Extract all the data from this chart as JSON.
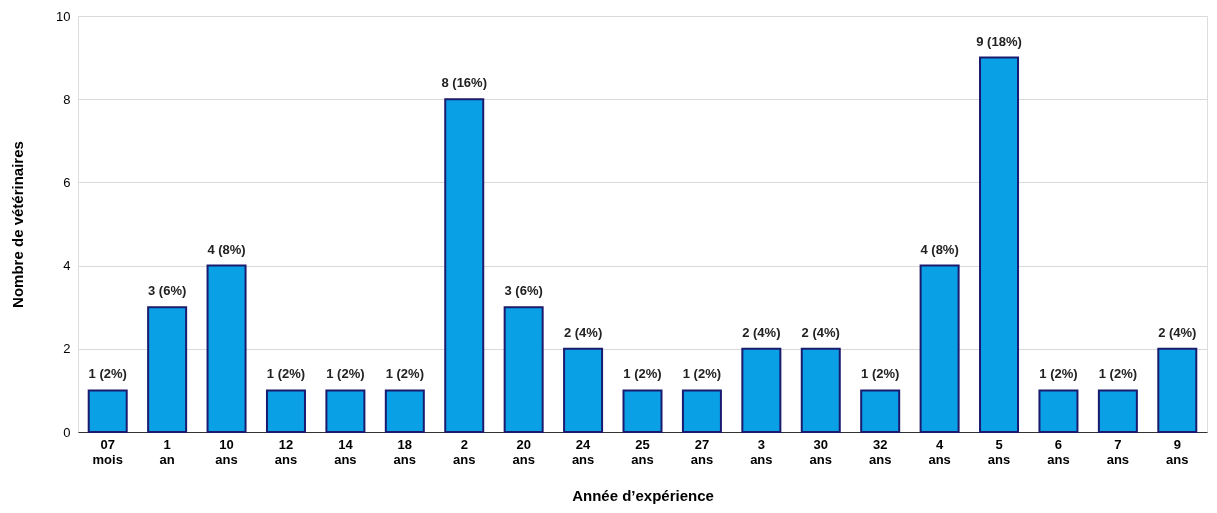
{
  "chart_data": {
    "type": "bar",
    "xlabel": "Année d’expérience",
    "ylabel": "Nombre de vétérinaires",
    "categories": [
      "07 mois",
      "1 an",
      "10 ans",
      "12 ans",
      "14 ans",
      "18 ans",
      "2 ans",
      "20 ans",
      "24 ans",
      "25 ans",
      "27 ans",
      "3 ans",
      "30 ans",
      "32 ans",
      "4 ans",
      "5 ans",
      "6 ans",
      "7 ans",
      "9 ans"
    ],
    "values": [
      1,
      3,
      4,
      1,
      1,
      1,
      8,
      3,
      2,
      1,
      1,
      2,
      2,
      1,
      4,
      9,
      1,
      1,
      2
    ],
    "value_labels": [
      "1 (2%)",
      "3 (6%)",
      "4 (8%)",
      "1 (2%)",
      "1 (2%)",
      "1 (2%)",
      "8 (16%)",
      "3 (6%)",
      "2 (4%)",
      "1 (2%)",
      "1 (2%)",
      "2 (4%)",
      "2 (4%)",
      "1 (2%)",
      "4 (8%)",
      "9 (18%)",
      "1 (2%)",
      "1 (2%)",
      "2 (4%)"
    ],
    "color": "#0aa0e6",
    "ylim": [
      0,
      10
    ],
    "yticks": [
      0,
      2,
      4,
      6,
      8,
      10
    ],
    "grid": "y"
  }
}
